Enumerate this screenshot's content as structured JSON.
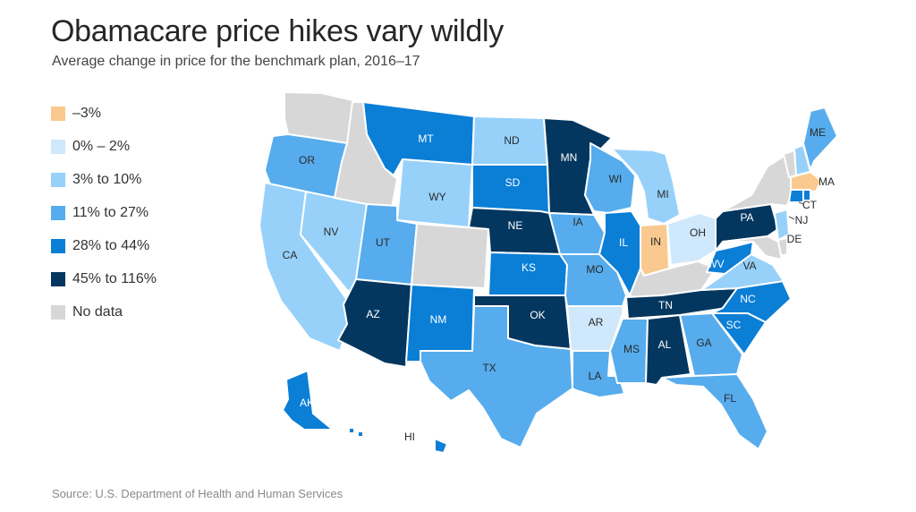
{
  "title": "Obamacare price hikes vary wildly",
  "subtitle": "Average change in price for the benchmark plan, 2016–17",
  "source": "Source: U.S. Department of Health and Human Services",
  "legend": [
    {
      "key": "neg",
      "label": "–3%",
      "color": "#f9c98f"
    },
    {
      "key": "c0",
      "label": "0% – 2%",
      "color": "#cfe8fb"
    },
    {
      "key": "c3",
      "label": "3% to 10%",
      "color": "#97d1fa"
    },
    {
      "key": "c11",
      "label": "11% to 27%",
      "color": "#56aced"
    },
    {
      "key": "c28",
      "label": "28% to 44%",
      "color": "#0b7ed6"
    },
    {
      "key": "c45",
      "label": "45% to 116%",
      "color": "#04375f"
    },
    {
      "key": "nd",
      "label": "No data",
      "color": "#d7d7d7"
    }
  ],
  "states": {
    "WA": "nd",
    "OR": "c11",
    "CA": "c3",
    "NV": "c3",
    "ID": "nd",
    "MT": "c28",
    "WY": "c3",
    "UT": "c11",
    "AZ": "c45",
    "CO": "nd",
    "NM": "c28",
    "ND": "c3",
    "SD": "c28",
    "NE": "c45",
    "KS": "c28",
    "OK": "c45",
    "TX": "c11",
    "MN": "c45",
    "IA": "c11",
    "MO": "c11",
    "AR": "c0",
    "LA": "c11",
    "WI": "c11",
    "IL": "c28",
    "MI": "c3",
    "IN": "neg",
    "OH": "c0",
    "KY": "nd",
    "TN": "c45",
    "MS": "c11",
    "AL": "c45",
    "GA": "c11",
    "FL": "c11",
    "SC": "c28",
    "NC": "c28",
    "VA": "c3",
    "WV": "c28",
    "PA": "c45",
    "NY": "nd",
    "VT": "nd",
    "NH": "c3",
    "ME": "c11",
    "MA": "neg",
    "RI": "c28",
    "CT": "c28",
    "NJ": "c3",
    "DE": "nd",
    "MD": "nd",
    "AK": "c28",
    "HI": "c28"
  },
  "labels": {
    "MT": "MT",
    "ND": "ND",
    "MN": "MN",
    "ME": "ME",
    "OR": "OR",
    "SD": "SD",
    "WI": "WI",
    "MI": "MI",
    "WY": "WY",
    "NE": "NE",
    "IA": "IA",
    "NV": "NV",
    "UT": "UT",
    "IL": "IL",
    "IN": "IN",
    "OH": "OH",
    "PA": "PA",
    "CA": "CA",
    "KS": "KS",
    "MO": "MO",
    "WV": "WV",
    "VA": "VA",
    "NC": "NC",
    "TN": "TN",
    "SC": "SC",
    "AZ": "AZ",
    "NM": "NM",
    "OK": "OK",
    "AR": "AR",
    "MS": "MS",
    "AL": "AL",
    "GA": "GA",
    "TX": "TX",
    "LA": "LA",
    "FL": "FL",
    "AK": "AK",
    "HI": "HI",
    "MA": "MA",
    "CT": "CT",
    "NJ": "NJ",
    "DE": "DE"
  }
}
